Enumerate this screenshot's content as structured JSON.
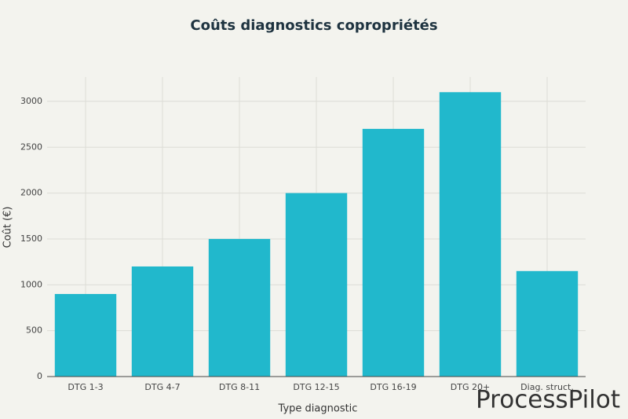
{
  "chart_data": {
    "type": "bar",
    "title": "Coûts diagnostics copropriétés",
    "x_label": "Type diagnostic",
    "y_label": "Coût (€)",
    "categories": [
      "DTG 1-3",
      "DTG 4-7",
      "DTG 8-11",
      "DTG 12-15",
      "DTG 16-19",
      "DTG 20+",
      "Diag. struct."
    ],
    "values": [
      900,
      1200,
      1500,
      2000,
      2700,
      3100,
      1150
    ],
    "color": "#21b8cc",
    "ylim": [
      0,
      3265
    ],
    "yticks": [
      0,
      500,
      1000,
      1500,
      2000,
      2500,
      3000
    ],
    "grid": true
  },
  "watermark": "ProcessPilot"
}
